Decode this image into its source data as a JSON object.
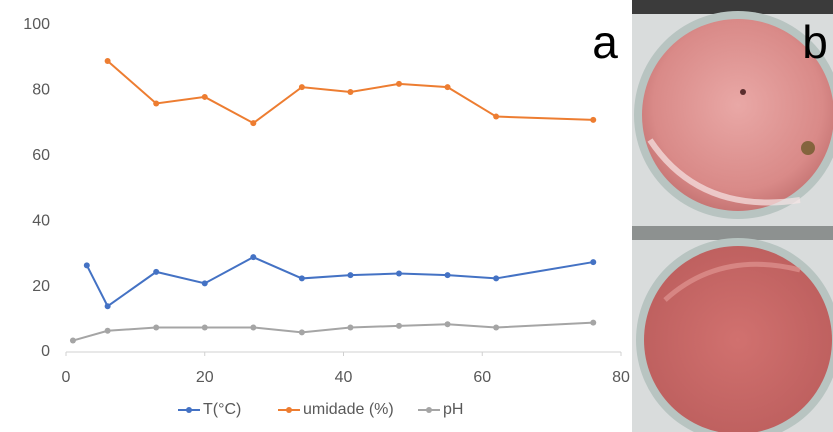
{
  "chart_data": {
    "type": "line",
    "panel_labels": [
      "a",
      "b"
    ],
    "xlim": [
      0,
      80
    ],
    "xticks": [
      0,
      20,
      40,
      60,
      80
    ],
    "ylim": [
      0,
      100
    ],
    "yticks": [
      0,
      20,
      40,
      60,
      80,
      100
    ],
    "grid": false,
    "legend": "bottom",
    "series": [
      {
        "name": "T(°C)",
        "color": "#4472c4",
        "x": [
          3,
          6,
          13,
          20,
          27,
          34,
          41,
          48,
          55,
          62,
          76
        ],
        "values": [
          26.5,
          14,
          24.5,
          21,
          29,
          22.5,
          23.5,
          24,
          23.5,
          22.5,
          27.5
        ]
      },
      {
        "name": "umidade (%)",
        "color": "#ed7d31",
        "x": [
          6,
          13,
          20,
          27,
          34,
          41,
          48,
          55,
          62,
          76
        ],
        "values": [
          89,
          76,
          78,
          70,
          81,
          79.5,
          82,
          81,
          72,
          71
        ]
      },
      {
        "name": "pH",
        "color": "#a5a5a5",
        "x": [
          1,
          6,
          13,
          20,
          27,
          34,
          41,
          48,
          55,
          62,
          76
        ],
        "values": [
          3.5,
          6.5,
          7.5,
          7.5,
          7.5,
          6,
          7.5,
          8,
          8.5,
          7.5,
          9
        ]
      }
    ]
  }
}
